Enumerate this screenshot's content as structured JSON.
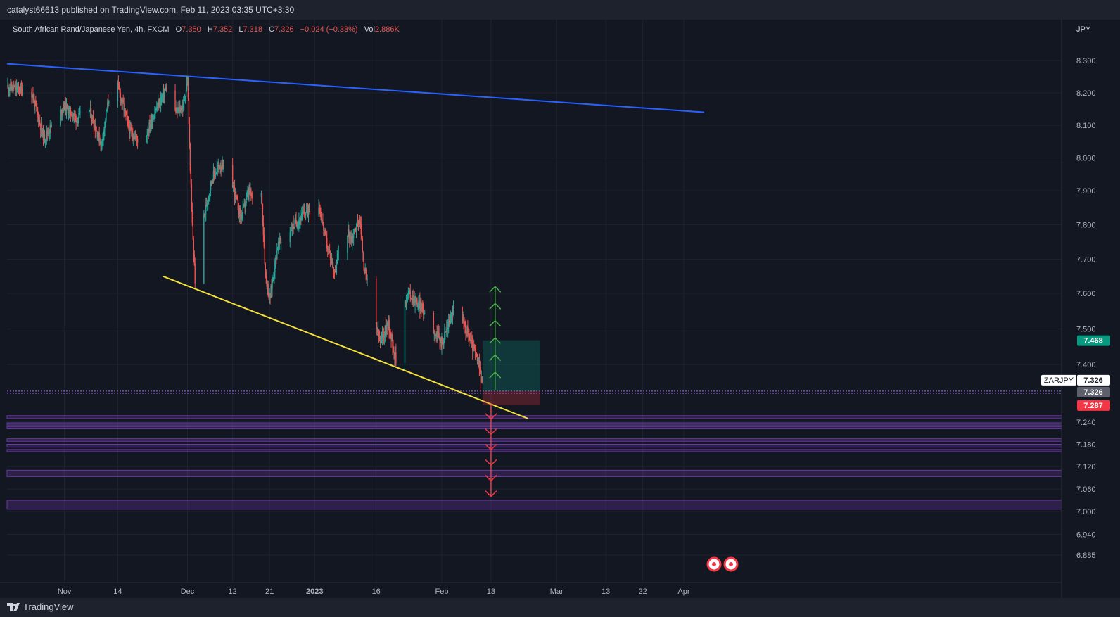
{
  "publish_bar": {
    "text": "catalyst66613 published on TradingView.com, Feb 11, 2023 03:35 UTC+3:30"
  },
  "legend": {
    "symbol": "South African Rand/Japanese Yen, 4h, FXCM",
    "o_label": "O",
    "o_value": "7.350",
    "h_label": "H",
    "h_value": "7.352",
    "l_label": "L",
    "l_value": "7.318",
    "c_label": "C",
    "c_value": "7.326",
    "change": "−0.024 (−0.33%)",
    "vol_label": "Vol",
    "vol_value": "2.886K"
  },
  "footer": {
    "brand": "TradingView"
  },
  "colors": {
    "background": "#131722",
    "grid": "#1f2331",
    "up": "#26a69a",
    "down": "#ef5350",
    "blue_line": "#2962ff",
    "yellow_line": "#f5e138",
    "zone_purple": "#7b3fbf",
    "green_arrow": "#4caf50",
    "red_arrow": "#f23645"
  },
  "chart_data": {
    "type": "candlestick",
    "currency": "JPY",
    "timeframe": "4h",
    "ylim": [
      6.86,
      8.38
    ],
    "y_ticks": [
      "8.300",
      "8.200",
      "8.100",
      "8.000",
      "7.900",
      "7.800",
      "7.700",
      "7.600",
      "7.500",
      "7.400",
      "7.240",
      "7.180",
      "7.120",
      "7.060",
      "7.000",
      "6.940",
      "6.885"
    ],
    "x_ticks": [
      "Nov",
      "14",
      "Dec",
      "12",
      "21",
      "2023",
      "16",
      "Feb",
      "13",
      "Mar",
      "13",
      "22",
      "Apr"
    ],
    "x_tick_dates": [
      "2022-11-01",
      "2022-11-14",
      "2022-12-01",
      "2022-12-12",
      "2022-12-21",
      "2023-01-01",
      "2023-01-16",
      "2023-02-01",
      "2023-02-13",
      "2023-03-01",
      "2023-03-13",
      "2023-03-22",
      "2023-04-01"
    ],
    "price_path": [
      [
        "2022-10-18",
        8.22
      ],
      [
        "2022-10-24",
        8.2
      ],
      [
        "2022-10-27",
        8.06
      ],
      [
        "2022-11-01",
        8.16
      ],
      [
        "2022-11-04",
        8.12
      ],
      [
        "2022-11-07",
        8.15
      ],
      [
        "2022-11-10",
        8.04
      ],
      [
        "2022-11-12",
        8.2
      ],
      [
        "2022-11-14",
        8.22
      ],
      [
        "2022-11-17",
        8.08
      ],
      [
        "2022-11-20",
        8.04
      ],
      [
        "2022-11-23",
        8.14
      ],
      [
        "2022-11-26",
        8.22
      ],
      [
        "2022-11-28",
        8.14
      ],
      [
        "2022-11-30",
        8.16
      ],
      [
        "2022-12-01",
        8.24
      ],
      [
        "2022-12-02",
        7.84
      ],
      [
        "2022-12-03",
        7.6
      ],
      [
        "2022-12-05",
        7.82
      ],
      [
        "2022-12-07",
        7.94
      ],
      [
        "2022-12-09",
        7.98
      ],
      [
        "2022-12-12",
        7.92
      ],
      [
        "2022-12-14",
        7.82
      ],
      [
        "2022-12-16",
        7.9
      ],
      [
        "2022-12-18",
        7.84
      ],
      [
        "2022-12-19",
        7.9
      ],
      [
        "2022-12-20",
        7.66
      ],
      [
        "2022-12-21",
        7.58
      ],
      [
        "2022-12-23",
        7.74
      ],
      [
        "2022-12-27",
        7.8
      ],
      [
        "2022-12-30",
        7.84
      ],
      [
        "2023-01-02",
        7.86
      ],
      [
        "2023-01-04",
        7.74
      ],
      [
        "2023-01-06",
        7.66
      ],
      [
        "2023-01-08",
        7.8
      ],
      [
        "2023-01-10",
        7.76
      ],
      [
        "2023-01-12",
        7.82
      ],
      [
        "2023-01-13",
        7.68
      ],
      [
        "2023-01-15",
        7.56
      ],
      [
        "2023-01-17",
        7.46
      ],
      [
        "2023-01-19",
        7.52
      ],
      [
        "2023-01-21",
        7.4
      ],
      [
        "2023-01-22",
        7.56
      ],
      [
        "2023-01-24",
        7.6
      ],
      [
        "2023-01-27",
        7.56
      ],
      [
        "2023-01-30",
        7.5
      ],
      [
        "2023-02-01",
        7.46
      ],
      [
        "2023-02-04",
        7.56
      ],
      [
        "2023-02-07",
        7.5
      ],
      [
        "2023-02-10",
        7.4
      ],
      [
        "2023-02-11",
        7.33
      ]
    ],
    "current_price": "7.326",
    "symbol_label": "ZARJPY",
    "price_labels": [
      {
        "value": "7.468",
        "color": "#089981"
      },
      {
        "value": "7.326",
        "color": "#ffffff"
      },
      {
        "value": "7.326",
        "color": "#5d606b"
      },
      {
        "value": "7.287",
        "color": "#f23645"
      }
    ],
    "trendlines": [
      {
        "name": "resistance",
        "color": "#2962ff",
        "from": [
          "2022-10-18",
          8.29
        ],
        "to": [
          "2023-04-06",
          8.14
        ]
      },
      {
        "name": "support",
        "color": "#f5e138",
        "from": [
          "2022-11-25",
          7.65
        ],
        "to": [
          "2023-02-22",
          7.25
        ]
      }
    ],
    "long_position": {
      "entry": 7.326,
      "target": 7.468,
      "stop": 7.287,
      "start": "2023-02-11",
      "end": "2023-02-25"
    },
    "horizontal_lines": [
      7.326,
      7.32
    ],
    "zones": [
      [
        7.25,
        7.258
      ],
      [
        7.232,
        7.238
      ],
      [
        7.222,
        7.228
      ],
      [
        7.188,
        7.195
      ],
      [
        7.172,
        7.18
      ],
      [
        7.16,
        7.166
      ],
      [
        7.093,
        7.11
      ],
      [
        7.006,
        7.03
      ]
    ],
    "up_arrows": {
      "date": "2023-02-14",
      "from": 7.33,
      "to": 7.62
    },
    "down_arrows": {
      "date": "2023-02-13",
      "from": 7.29,
      "to": 7.04
    },
    "event_markers": 2
  }
}
